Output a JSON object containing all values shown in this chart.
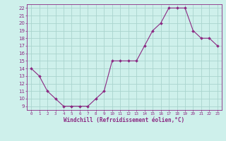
{
  "x": [
    0,
    1,
    2,
    3,
    4,
    5,
    6,
    7,
    8,
    9,
    10,
    11,
    12,
    13,
    14,
    15,
    16,
    17,
    18,
    19,
    20,
    21,
    22,
    23
  ],
  "y": [
    14,
    13,
    11,
    10,
    9,
    9,
    9,
    9,
    10,
    11,
    15,
    15,
    15,
    15,
    17,
    19,
    20,
    22,
    22,
    22,
    19,
    18,
    18,
    17
  ],
  "line_color": "#8b2882",
  "marker_color": "#8b2882",
  "bg_color": "#cef0eb",
  "grid_color": "#aad4ce",
  "xlabel": "Windchill (Refroidissement éolien,°C)",
  "xlabel_color": "#8b2882",
  "tick_color": "#8b2882",
  "ylim_min": 9,
  "ylim_max": 22,
  "xlim_min": 0,
  "xlim_max": 23,
  "yticks": [
    9,
    10,
    11,
    12,
    13,
    14,
    15,
    16,
    17,
    18,
    19,
    20,
    21,
    22
  ],
  "xticks": [
    0,
    1,
    2,
    3,
    4,
    5,
    6,
    7,
    8,
    9,
    10,
    11,
    12,
    13,
    14,
    15,
    16,
    17,
    18,
    19,
    20,
    21,
    22,
    23
  ],
  "xlabel_fontsize": 5.5,
  "xtick_fontsize": 4.2,
  "ytick_fontsize": 5.0,
  "linewidth": 0.8,
  "markersize": 2.0
}
